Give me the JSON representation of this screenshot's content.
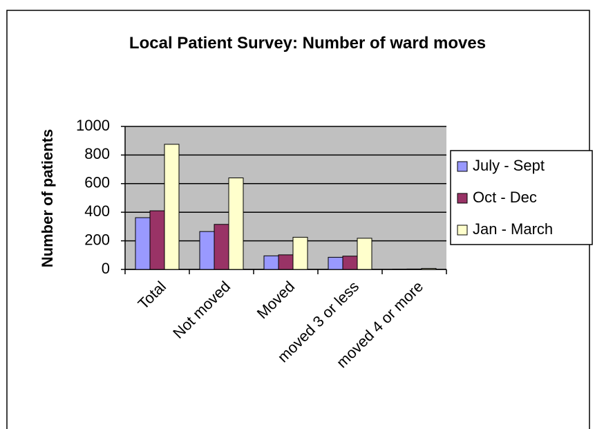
{
  "chart_data": {
    "type": "bar",
    "title": "Local Patient Survey: Number of ward moves",
    "y_label": "Number of patients",
    "categories": [
      "Total",
      "Not moved",
      "Moved",
      "moved 3 or less",
      "moved 4 or more"
    ],
    "series": [
      {
        "name": "July - Sept",
        "color": "#9999ff",
        "values": [
          362,
          265,
          95,
          85,
          2
        ]
      },
      {
        "name": "Oct - Dec",
        "color": "#993366",
        "values": [
          410,
          315,
          102,
          93,
          3
        ]
      },
      {
        "name": "Jan - March",
        "color": "#ffffcc",
        "values": [
          875,
          640,
          225,
          218,
          7
        ]
      }
    ],
    "ylim": [
      0,
      1000
    ],
    "yticks": [
      0,
      200,
      400,
      600,
      800,
      1000
    ],
    "grid": true,
    "legend": "right"
  }
}
